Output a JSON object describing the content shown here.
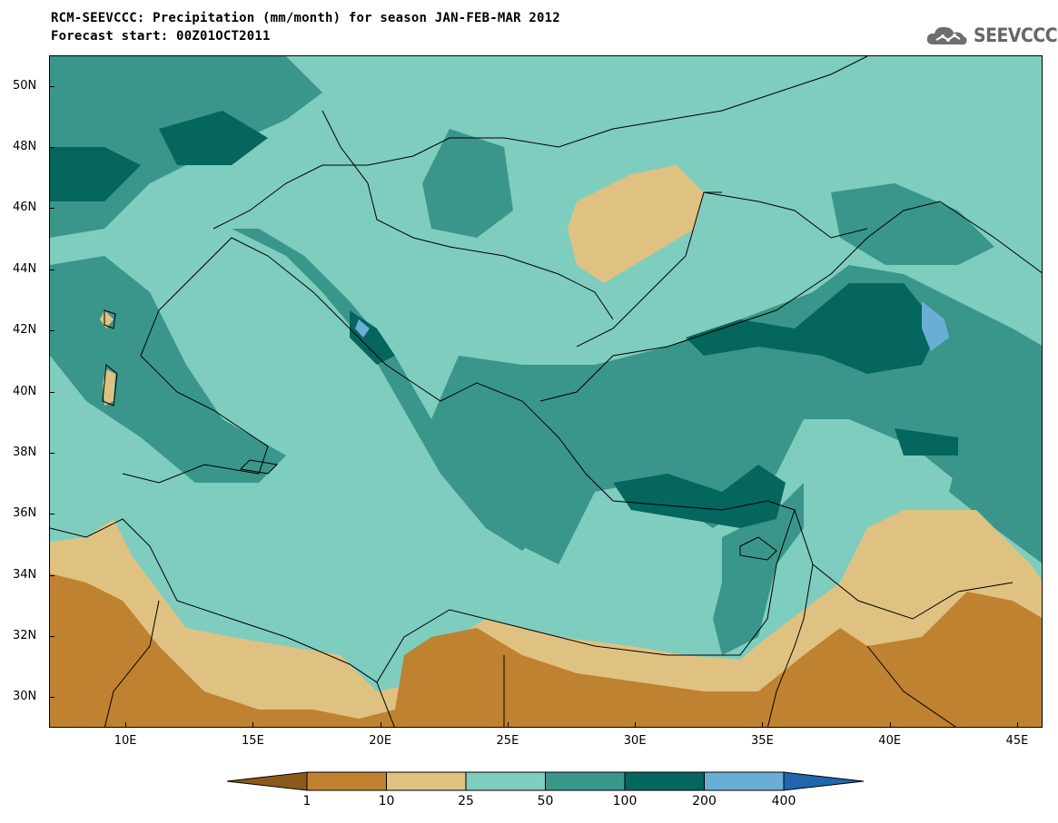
{
  "header": {
    "title_line1": "RCM-SEEVCCC: Precipitation (mm/month) for season JAN-FEB-MAR 2012",
    "title_line2": "Forecast start: 00Z01OCT2011"
  },
  "logo": {
    "text": "SEEVCCC",
    "icon": "cloud-icon"
  },
  "map": {
    "latitude_labels": [
      "50N",
      "48N",
      "46N",
      "44N",
      "42N",
      "40N",
      "38N",
      "36N",
      "34N",
      "32N",
      "30N"
    ],
    "longitude_labels": [
      "10E",
      "15E",
      "20E",
      "25E",
      "30E",
      "35E",
      "40E",
      "45E"
    ],
    "lat_range": [
      29,
      51
    ],
    "lon_range": [
      7,
      46
    ],
    "background_class": "25-50"
  },
  "legend": {
    "levels": [
      "1",
      "10",
      "25",
      "50",
      "100",
      "200",
      "400"
    ],
    "colors": [
      "#8b5a1b",
      "#bf8230",
      "#dfc281",
      "#7ecdbf",
      "#3a968a",
      "#04665c",
      "#6aaed6",
      "#2166ac"
    ]
  }
}
